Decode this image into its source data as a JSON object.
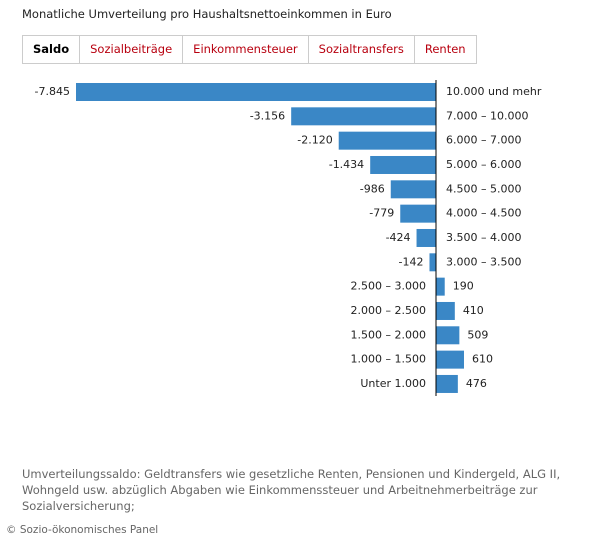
{
  "chart_data": {
    "type": "bar",
    "orientation": "horizontal",
    "title": "Monatliche Umverteilung pro Haushaltsnettoeinkommen in Euro",
    "categories": [
      "10.000 und mehr",
      "7.000 – 10.000",
      "6.000 – 7.000",
      "5.000 – 6.000",
      "4.500 – 5.000",
      "4.000 – 4.500",
      "3.500 – 4.000",
      "3.000 – 3.500",
      "2.500 – 3.000",
      "2.000 – 2.500",
      "1.500 – 2.000",
      "1.000 – 1.500",
      "Unter 1.000"
    ],
    "values": [
      -7845,
      -3156,
      -2120,
      -1434,
      -986,
      -779,
      -424,
      -142,
      190,
      410,
      509,
      610,
      476
    ],
    "value_labels": [
      "-7.845",
      "-3.156",
      "-2.120",
      "-1.434",
      "-986",
      "-779",
      "-424",
      "-142",
      "190",
      "410",
      "509",
      "610",
      "476"
    ],
    "color": "#3a87c6"
  },
  "tabs": [
    "Saldo",
    "Sozialbeiträge",
    "Einkommensteuer",
    "Sozialtransfers",
    "Renten"
  ],
  "active_tab": 0,
  "footnote": "Umverteilungssaldo: Geldtransfers wie gesetzliche Renten, Pensionen und Kindergeld, ALG II, Wohngeld usw. abzüglich Abgaben wie Einkommenssteuer und Arbeitnehmerbeiträge zur Sozialversicherung;",
  "source": "© Sozio-ökonomisches Panel"
}
